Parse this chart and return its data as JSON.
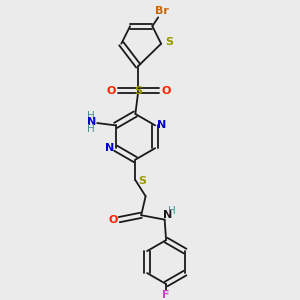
{
  "background_color": "#ebebeb",
  "fig_width": 3.0,
  "fig_height": 3.0,
  "dpi": 100,
  "bond_lw": 1.3,
  "colors": {
    "black": "#1a1a1a",
    "S": "#999900",
    "N": "#0000cc",
    "O": "#ff2200",
    "Br": "#cc6600",
    "F": "#cc44cc",
    "H": "#4a9090",
    "NH2_N": "#0000cc",
    "NH2_H": "#4a9090"
  }
}
